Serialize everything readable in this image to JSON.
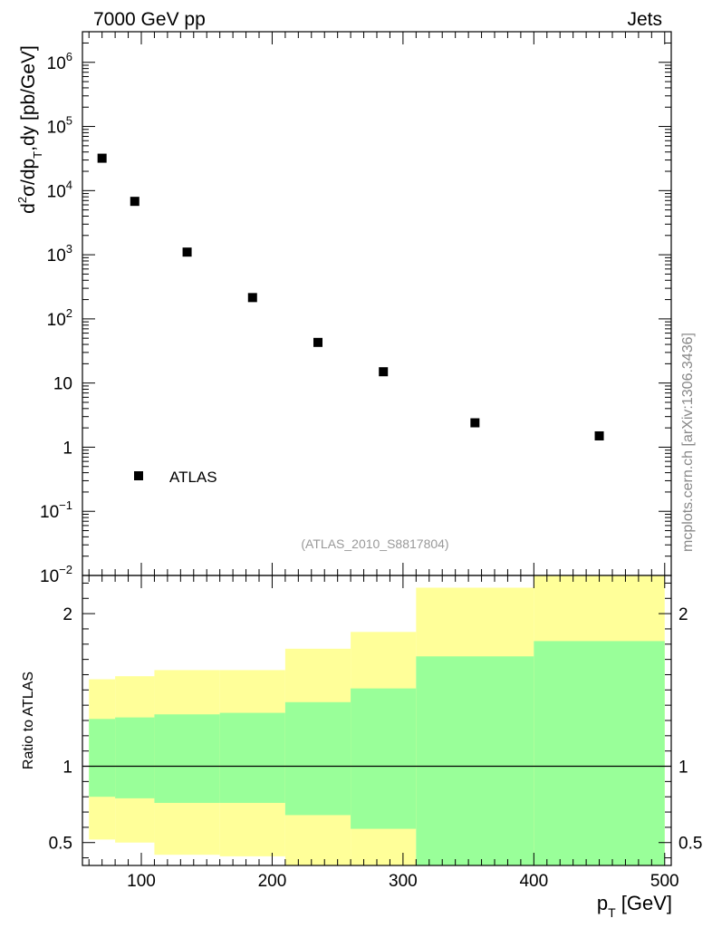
{
  "header": {
    "left": "7000 GeV pp",
    "right": "Jets"
  },
  "side_label": "mcplots.cern.ch [arXiv:1306.3436]",
  "analysis_label": "(ATLAS_2010_S8817804)",
  "chart_data": [
    {
      "type": "scatter",
      "panel": "main",
      "log_y": true,
      "ylabel": "d²σ/dp_T,dy [pb/GeV]",
      "xlim": [
        55,
        505
      ],
      "ylim": [
        0.01,
        3000000
      ],
      "y_tick_labels": [
        {
          "v": 1000000,
          "base": "10",
          "exp": "6"
        },
        {
          "v": 100000,
          "base": "10",
          "exp": "5"
        },
        {
          "v": 10000,
          "base": "10",
          "exp": "4"
        },
        {
          "v": 1000,
          "base": "10",
          "exp": "3"
        },
        {
          "v": 100,
          "base": "10",
          "exp": "2"
        },
        {
          "v": 10,
          "base": "10",
          "exp": ""
        },
        {
          "v": 1,
          "base": "1",
          "exp": ""
        },
        {
          "v": 0.1,
          "base": "10",
          "exp": "−1"
        },
        {
          "v": 0.01,
          "base": "10",
          "exp": "−2"
        }
      ],
      "legend": {
        "label": "ATLAS",
        "placement": "bottom-left"
      },
      "series": [
        {
          "name": "ATLAS",
          "points": [
            {
              "x": 70,
              "y": 32000
            },
            {
              "x": 95,
              "y": 6800
            },
            {
              "x": 135,
              "y": 1100
            },
            {
              "x": 185,
              "y": 215
            },
            {
              "x": 235,
              "y": 43
            },
            {
              "x": 285,
              "y": 15
            },
            {
              "x": 355,
              "y": 2.4
            },
            {
              "x": 450,
              "y": 1.5
            }
          ]
        }
      ]
    },
    {
      "type": "area",
      "panel": "ratio",
      "ylabel": "Ratio to ATLAS",
      "xlabel": "p_T [GeV]",
      "xlim": [
        55,
        505
      ],
      "ylim": [
        0.35,
        2.25
      ],
      "x_ticks": [
        100,
        200,
        300,
        400,
        500
      ],
      "y_ticks": [
        0.5,
        1,
        2
      ],
      "reference_line": 1,
      "colors": {
        "inner": "#99ff99",
        "outer": "#ffff99"
      },
      "bands": [
        {
          "x1": 60,
          "x2": 80,
          "outer_lo": 0.52,
          "outer_hi": 1.57,
          "inner_lo": 0.8,
          "inner_hi": 1.31
        },
        {
          "x1": 80,
          "x2": 110,
          "outer_lo": 0.5,
          "outer_hi": 1.59,
          "inner_lo": 0.79,
          "inner_hi": 1.32
        },
        {
          "x1": 110,
          "x2": 160,
          "outer_lo": 0.42,
          "outer_hi": 1.63,
          "inner_lo": 0.76,
          "inner_hi": 1.34
        },
        {
          "x1": 160,
          "x2": 210,
          "outer_lo": 0.41,
          "outer_hi": 1.63,
          "inner_lo": 0.76,
          "inner_hi": 1.35
        },
        {
          "x1": 210,
          "x2": 260,
          "outer_lo": 0.32,
          "outer_hi": 1.77,
          "inner_lo": 0.68,
          "inner_hi": 1.42
        },
        {
          "x1": 260,
          "x2": 310,
          "outer_lo": 0.32,
          "outer_hi": 1.88,
          "inner_lo": 0.59,
          "inner_hi": 1.51
        },
        {
          "x1": 310,
          "x2": 400,
          "outer_lo": 0.32,
          "outer_hi": 2.17,
          "inner_lo": 0.32,
          "inner_hi": 1.72
        },
        {
          "x1": 400,
          "x2": 500,
          "outer_lo": 0.32,
          "outer_hi": 2.3,
          "inner_lo": 0.32,
          "inner_hi": 1.82
        }
      ]
    }
  ]
}
